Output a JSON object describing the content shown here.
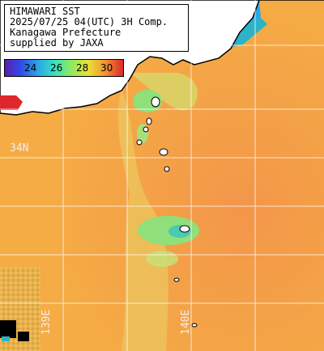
{
  "title": {
    "line1": "HIMAWARI SST",
    "line2": "2025/07/25 04(UTC) 3H Comp.",
    "line3": "Kanagawa Prefecture",
    "line4": "supplied by JAXA"
  },
  "legend": {
    "ticks": [
      "24",
      "26",
      "28",
      "30"
    ]
  },
  "grid": {
    "lat_label": "34N",
    "lon_label_1": "139E",
    "lon_label_2": "140E"
  },
  "colors": {
    "land": "#ffffff",
    "coast": "#000000",
    "sea_warm": "#f4a33d",
    "sea_mid": "#e8c25a",
    "sea_cool": "#8fe07a",
    "sea_cold": "#2db3c8",
    "no_data": "#000000"
  }
}
